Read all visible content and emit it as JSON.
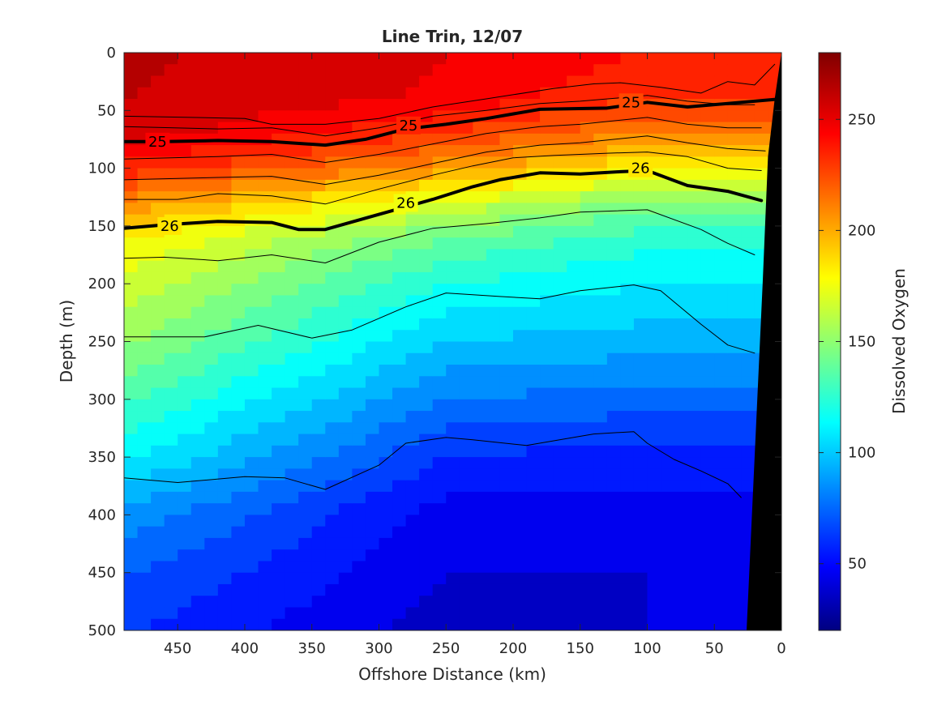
{
  "chart_data": {
    "type": "heatmap",
    "title": "Line Trin, 12/07",
    "xlabel": "Offshore Distance (km)",
    "ylabel": "Depth (m)",
    "colorbar_label": "Dissolved Oxygen",
    "x_reversed": true,
    "y_reversed": true,
    "xlim": [
      490,
      0
    ],
    "ylim": [
      0,
      500
    ],
    "x_ticks": [
      450,
      400,
      350,
      300,
      250,
      200,
      150,
      100,
      50,
      0
    ],
    "y_ticks": [
      0,
      50,
      100,
      150,
      200,
      250,
      300,
      350,
      400,
      450,
      500
    ],
    "colorbar_range": [
      20,
      280
    ],
    "colorbar_ticks": [
      50,
      100,
      150,
      200,
      250
    ],
    "colormap": "jet",
    "colormap_stops": [
      "#000080",
      "#0000ff",
      "#00ffff",
      "#ffff00",
      "#ff0000",
      "#800000"
    ],
    "oxygen_profile_by_depth": {
      "depth": [
        0,
        40,
        70,
        100,
        130,
        160,
        200,
        250,
        300,
        350,
        400,
        450,
        500
      ],
      "offshore_480km": [
        262,
        260,
        255,
        235,
        205,
        180,
        165,
        150,
        130,
        110,
        85,
        70,
        60
      ],
      "offshore_250km": [
        250,
        248,
        230,
        205,
        170,
        140,
        120,
        100,
        80,
        60,
        45,
        40,
        35
      ],
      "offshore_100km": [
        240,
        230,
        210,
        180,
        145,
        125,
        110,
        95,
        75,
        55,
        45,
        40,
        40
      ]
    },
    "density_contours": [
      {
        "label": "25",
        "emphasized": true,
        "x": [
          490,
          460,
          420,
          380,
          340,
          310,
          280,
          250,
          220,
          180,
          130,
          100,
          70,
          40,
          0
        ],
        "y": [
          77,
          77,
          76,
          77,
          80,
          75,
          66,
          62,
          57,
          49,
          48,
          43,
          47,
          44,
          40
        ]
      },
      {
        "label": "26",
        "emphasized": true,
        "x": [
          490,
          460,
          420,
          380,
          360,
          340,
          300,
          260,
          230,
          210,
          180,
          150,
          120,
          100,
          70,
          40,
          15
        ],
        "y": [
          152,
          149,
          146,
          147,
          153,
          153,
          140,
          127,
          116,
          110,
          104,
          105,
          103,
          102,
          115,
          120,
          128
        ]
      },
      {
        "emphasized": false,
        "x": [
          490,
          440,
          400,
          380,
          340,
          300,
          260,
          220,
          170,
          140,
          120,
          90,
          60,
          40,
          20,
          5
        ],
        "y": [
          55,
          56,
          57,
          62,
          62,
          57,
          47,
          40,
          31,
          27,
          26,
          30,
          35,
          25,
          28,
          10
        ]
      },
      {
        "emphasized": false,
        "x": [
          490,
          420,
          380,
          340,
          300,
          260,
          220,
          180,
          150,
          100,
          70,
          40,
          20
        ],
        "y": [
          64,
          66,
          65,
          72,
          65,
          55,
          50,
          44,
          42,
          37,
          42,
          45,
          45
        ]
      },
      {
        "emphasized": false,
        "x": [
          490,
          420,
          380,
          340,
          300,
          260,
          220,
          180,
          150,
          100,
          70,
          40,
          15
        ],
        "y": [
          92,
          90,
          88,
          95,
          88,
          79,
          70,
          64,
          62,
          56,
          62,
          65,
          65
        ]
      },
      {
        "emphasized": false,
        "x": [
          490,
          420,
          380,
          340,
          300,
          260,
          220,
          180,
          150,
          100,
          70,
          40,
          12
        ],
        "y": [
          110,
          108,
          107,
          114,
          106,
          96,
          86,
          80,
          78,
          72,
          78,
          83,
          85
        ]
      },
      {
        "emphasized": false,
        "x": [
          490,
          450,
          420,
          380,
          340,
          300,
          260,
          230,
          200,
          170,
          130,
          100,
          70,
          40,
          15
        ],
        "y": [
          127,
          127,
          122,
          124,
          131,
          118,
          106,
          98,
          91,
          89,
          87,
          86,
          90,
          100,
          102
        ]
      },
      {
        "emphasized": false,
        "x": [
          490,
          460,
          420,
          380,
          340,
          300,
          260,
          220,
          180,
          150,
          100,
          60,
          40,
          20
        ],
        "y": [
          178,
          177,
          180,
          175,
          182,
          164,
          152,
          148,
          143,
          138,
          136,
          153,
          165,
          175
        ]
      },
      {
        "emphasized": false,
        "x": [
          490,
          430,
          390,
          350,
          320,
          280,
          250,
          210,
          180,
          150,
          110,
          90,
          60,
          40,
          20
        ],
        "y": [
          246,
          246,
          236,
          247,
          240,
          220,
          208,
          211,
          213,
          206,
          201,
          206,
          235,
          253,
          260
        ]
      },
      {
        "emphasized": false,
        "x": [
          490,
          450,
          400,
          370,
          340,
          300,
          280,
          250,
          230,
          190,
          160,
          140,
          110,
          100,
          80,
          60,
          40,
          30
        ],
        "y": [
          368,
          372,
          367,
          368,
          378,
          357,
          338,
          333,
          335,
          340,
          334,
          330,
          328,
          338,
          352,
          362,
          373,
          385
        ]
      }
    ],
    "contour_labels": [
      {
        "text": "25",
        "x": 465,
        "y": 77
      },
      {
        "text": "25",
        "x": 278,
        "y": 63
      },
      {
        "text": "25",
        "x": 112,
        "y": 43
      },
      {
        "text": "26",
        "x": 456,
        "y": 150
      },
      {
        "text": "26",
        "x": 280,
        "y": 130
      },
      {
        "text": "26",
        "x": 105,
        "y": 100
      }
    ],
    "bottom_topography": {
      "x": [
        0,
        5,
        10,
        14,
        18,
        22,
        26,
        0
      ],
      "y": [
        0,
        40,
        90,
        200,
        300,
        400,
        500,
        500
      ]
    }
  }
}
